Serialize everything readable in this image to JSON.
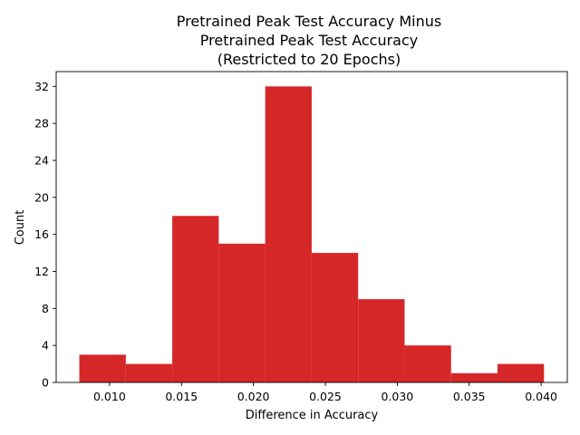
{
  "chart_data": {
    "type": "bar",
    "title_lines": [
      "Pretrained Peak Test Accuracy Minus",
      "Pretrained Peak Test Accuracy",
      "(Restricted to 20 Epochs)"
    ],
    "xlabel": "Difference in Accuracy",
    "ylabel": "Count",
    "bin_edges": [
      0.0079,
      0.01113,
      0.01436,
      0.01759,
      0.02082,
      0.02405,
      0.02728,
      0.03051,
      0.03374,
      0.03697,
      0.0402
    ],
    "counts": [
      3,
      2,
      18,
      15,
      32,
      14,
      9,
      4,
      1,
      2
    ],
    "xlim": [
      0.00629,
      0.04182
    ],
    "ylim": [
      0,
      33.6
    ],
    "x_ticks": [
      "0.010",
      "0.015",
      "0.020",
      "0.025",
      "0.030",
      "0.035",
      "0.040"
    ],
    "y_ticks": [
      "0",
      "4",
      "8",
      "12",
      "16",
      "20",
      "24",
      "28",
      "32"
    ],
    "bar_color": "#d62728"
  }
}
